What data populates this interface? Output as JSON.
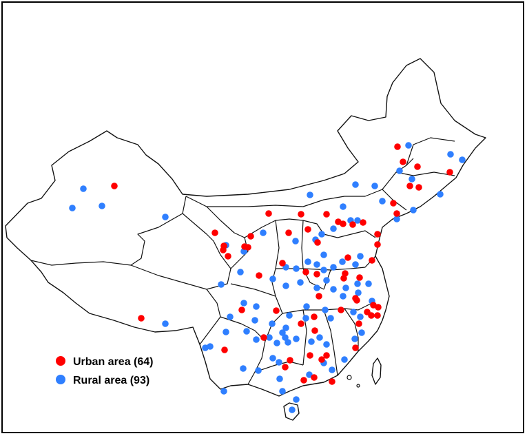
{
  "map": {
    "region": "China",
    "colors": {
      "urban": "#ff0000",
      "rural": "#2f7fff",
      "border": "#111111"
    }
  },
  "legend": {
    "urban_label": "Urban area (64)",
    "rural_label": "Rural area (93)"
  }
}
